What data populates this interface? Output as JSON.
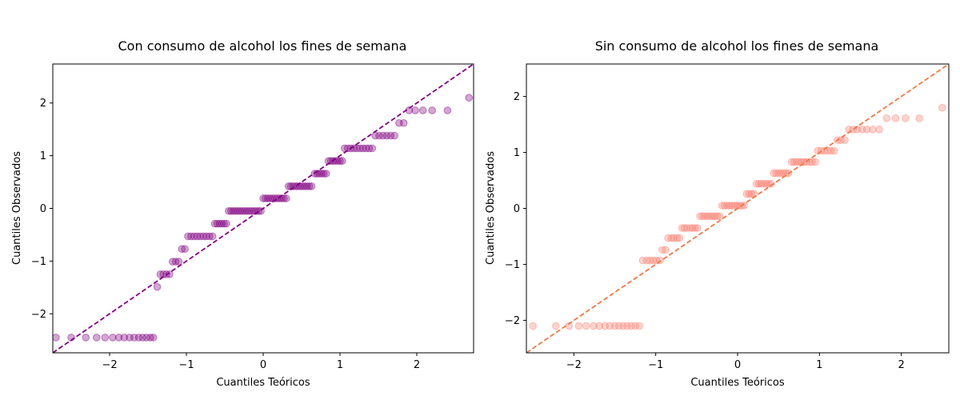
{
  "chart_data": [
    {
      "type": "scatter",
      "title": "Con consumo de alcohol los fines de semana",
      "xlabel": "Cuantiles Teóricos",
      "ylabel": "Cuantiles Observados",
      "xlim": [
        -2.74,
        2.74
      ],
      "ylim": [
        -2.74,
        2.74
      ],
      "xticks": [
        -2,
        -1,
        0,
        1,
        2
      ],
      "yticks": [
        -2,
        -1,
        0,
        1,
        2
      ],
      "grid": false,
      "colors": {
        "points": "#800080",
        "line": "#800080"
      },
      "reference_line": {
        "style": "dashed",
        "slope": 1,
        "intercept": 0
      },
      "series": [
        {
          "values": [
            [
              -2.7,
              -2.45
            ],
            [
              -2.5,
              -2.45
            ],
            [
              -2.31,
              -2.45
            ],
            [
              -2.17,
              -2.45
            ],
            [
              -2.06,
              -2.45
            ],
            [
              -1.96,
              -2.45
            ],
            [
              -1.88,
              -2.45
            ],
            [
              -1.81,
              -2.45
            ],
            [
              -1.74,
              -2.45
            ],
            [
              -1.68,
              -2.45
            ],
            [
              -1.62,
              -2.45
            ],
            [
              -1.57,
              -2.45
            ],
            [
              -1.52,
              -2.45
            ],
            [
              -1.47,
              -2.45
            ],
            [
              -1.43,
              -2.45
            ],
            [
              -1.38,
              -1.49
            ],
            [
              -1.34,
              -1.25
            ],
            [
              -1.3,
              -1.25
            ],
            [
              -1.26,
              -1.25
            ],
            [
              -1.22,
              -1.25
            ],
            [
              -1.18,
              -1.01
            ],
            [
              -1.14,
              -1.01
            ],
            [
              -1.1,
              -1.01
            ],
            [
              -1.06,
              -0.77
            ],
            [
              -1.02,
              -0.77
            ],
            [
              -0.98,
              -0.53
            ],
            [
              -0.94,
              -0.53
            ],
            [
              -0.9,
              -0.53
            ],
            [
              -0.86,
              -0.53
            ],
            [
              -0.82,
              -0.53
            ],
            [
              -0.78,
              -0.53
            ],
            [
              -0.74,
              -0.53
            ],
            [
              -0.7,
              -0.53
            ],
            [
              -0.66,
              -0.53
            ],
            [
              -0.63,
              -0.29
            ],
            [
              -0.6,
              -0.29
            ],
            [
              -0.57,
              -0.29
            ],
            [
              -0.54,
              -0.29
            ],
            [
              -0.51,
              -0.29
            ],
            [
              -0.48,
              -0.29
            ],
            [
              -0.45,
              -0.05
            ],
            [
              -0.42,
              -0.05
            ],
            [
              -0.39,
              -0.05
            ],
            [
              -0.36,
              -0.05
            ],
            [
              -0.33,
              -0.05
            ],
            [
              -0.3,
              -0.05
            ],
            [
              -0.27,
              -0.05
            ],
            [
              -0.24,
              -0.05
            ],
            [
              -0.21,
              -0.05
            ],
            [
              -0.18,
              -0.05
            ],
            [
              -0.15,
              -0.05
            ],
            [
              -0.12,
              -0.05
            ],
            [
              -0.09,
              -0.05
            ],
            [
              -0.06,
              -0.05
            ],
            [
              -0.03,
              -0.05
            ],
            [
              0.0,
              0.19
            ],
            [
              0.03,
              0.19
            ],
            [
              0.06,
              0.19
            ],
            [
              0.09,
              0.19
            ],
            [
              0.12,
              0.19
            ],
            [
              0.15,
              0.19
            ],
            [
              0.18,
              0.19
            ],
            [
              0.21,
              0.19
            ],
            [
              0.24,
              0.19
            ],
            [
              0.27,
              0.19
            ],
            [
              0.3,
              0.19
            ],
            [
              0.33,
              0.42
            ],
            [
              0.36,
              0.42
            ],
            [
              0.39,
              0.42
            ],
            [
              0.42,
              0.42
            ],
            [
              0.45,
              0.42
            ],
            [
              0.48,
              0.42
            ],
            [
              0.51,
              0.42
            ],
            [
              0.54,
              0.42
            ],
            [
              0.57,
              0.42
            ],
            [
              0.6,
              0.42
            ],
            [
              0.63,
              0.42
            ],
            [
              0.67,
              0.66
            ],
            [
              0.7,
              0.66
            ],
            [
              0.73,
              0.66
            ],
            [
              0.76,
              0.66
            ],
            [
              0.79,
              0.66
            ],
            [
              0.82,
              0.66
            ],
            [
              0.85,
              0.9
            ],
            [
              0.88,
              0.9
            ],
            [
              0.91,
              0.9
            ],
            [
              0.94,
              0.9
            ],
            [
              0.97,
              0.9
            ],
            [
              1.0,
              0.9
            ],
            [
              1.03,
              0.9
            ],
            [
              1.06,
              1.14
            ],
            [
              1.1,
              1.14
            ],
            [
              1.14,
              1.14
            ],
            [
              1.18,
              1.14
            ],
            [
              1.22,
              1.14
            ],
            [
              1.26,
              1.14
            ],
            [
              1.3,
              1.14
            ],
            [
              1.34,
              1.14
            ],
            [
              1.38,
              1.14
            ],
            [
              1.42,
              1.14
            ],
            [
              1.46,
              1.38
            ],
            [
              1.51,
              1.38
            ],
            [
              1.56,
              1.38
            ],
            [
              1.61,
              1.38
            ],
            [
              1.66,
              1.38
            ],
            [
              1.71,
              1.38
            ],
            [
              1.77,
              1.62
            ],
            [
              1.83,
              1.62
            ],
            [
              1.9,
              1.86
            ],
            [
              1.98,
              1.86
            ],
            [
              2.08,
              1.86
            ],
            [
              2.2,
              1.86
            ],
            [
              2.4,
              1.86
            ],
            [
              2.68,
              2.1
            ]
          ]
        }
      ]
    },
    {
      "type": "scatter",
      "title": "Sin consumo de alcohol los fines de semana",
      "xlabel": "Cuantiles Teóricos",
      "ylabel": "Cuantiles Observados",
      "xlim": [
        -2.58,
        2.58
      ],
      "ylim": [
        -2.58,
        2.58
      ],
      "xticks": [
        -2,
        -1,
        0,
        1,
        2
      ],
      "yticks": [
        -2,
        -1,
        0,
        1,
        2
      ],
      "grid": false,
      "colors": {
        "points": "#FA8072",
        "line": "#F07844"
      },
      "reference_line": {
        "style": "dashed",
        "slope": 1,
        "intercept": 0
      },
      "series": [
        {
          "values": [
            [
              -2.5,
              -2.1
            ],
            [
              -2.22,
              -2.1
            ],
            [
              -2.06,
              -2.1
            ],
            [
              -1.94,
              -2.1
            ],
            [
              -1.85,
              -2.1
            ],
            [
              -1.76,
              -2.1
            ],
            [
              -1.69,
              -2.1
            ],
            [
              -1.62,
              -2.1
            ],
            [
              -1.56,
              -2.1
            ],
            [
              -1.5,
              -2.1
            ],
            [
              -1.45,
              -2.1
            ],
            [
              -1.4,
              -2.1
            ],
            [
              -1.35,
              -2.1
            ],
            [
              -1.3,
              -2.1
            ],
            [
              -1.25,
              -2.1
            ],
            [
              -1.2,
              -2.1
            ],
            [
              -1.16,
              -0.93
            ],
            [
              -1.11,
              -0.93
            ],
            [
              -1.07,
              -0.93
            ],
            [
              -1.03,
              -0.93
            ],
            [
              -0.99,
              -0.93
            ],
            [
              -0.95,
              -0.93
            ],
            [
              -0.92,
              -0.74
            ],
            [
              -0.88,
              -0.74
            ],
            [
              -0.85,
              -0.53
            ],
            [
              -0.81,
              -0.53
            ],
            [
              -0.78,
              -0.53
            ],
            [
              -0.74,
              -0.53
            ],
            [
              -0.71,
              -0.53
            ],
            [
              -0.68,
              -0.35
            ],
            [
              -0.65,
              -0.35
            ],
            [
              -0.62,
              -0.35
            ],
            [
              -0.58,
              -0.35
            ],
            [
              -0.55,
              -0.35
            ],
            [
              -0.52,
              -0.35
            ],
            [
              -0.49,
              -0.35
            ],
            [
              -0.46,
              -0.14
            ],
            [
              -0.43,
              -0.14
            ],
            [
              -0.4,
              -0.14
            ],
            [
              -0.37,
              -0.14
            ],
            [
              -0.34,
              -0.14
            ],
            [
              -0.31,
              -0.14
            ],
            [
              -0.28,
              -0.14
            ],
            [
              -0.25,
              -0.14
            ],
            [
              -0.22,
              -0.14
            ],
            [
              -0.19,
              0.05
            ],
            [
              -0.16,
              0.05
            ],
            [
              -0.13,
              0.05
            ],
            [
              -0.1,
              0.05
            ],
            [
              -0.07,
              0.05
            ],
            [
              -0.04,
              0.05
            ],
            [
              -0.01,
              0.05
            ],
            [
              0.02,
              0.05
            ],
            [
              0.05,
              0.05
            ],
            [
              0.08,
              0.05
            ],
            [
              0.11,
              0.26
            ],
            [
              0.14,
              0.26
            ],
            [
              0.17,
              0.26
            ],
            [
              0.2,
              0.26
            ],
            [
              0.23,
              0.44
            ],
            [
              0.26,
              0.44
            ],
            [
              0.29,
              0.44
            ],
            [
              0.32,
              0.44
            ],
            [
              0.35,
              0.44
            ],
            [
              0.38,
              0.44
            ],
            [
              0.41,
              0.44
            ],
            [
              0.44,
              0.63
            ],
            [
              0.47,
              0.63
            ],
            [
              0.5,
              0.63
            ],
            [
              0.53,
              0.63
            ],
            [
              0.56,
              0.63
            ],
            [
              0.59,
              0.63
            ],
            [
              0.62,
              0.63
            ],
            [
              0.66,
              0.83
            ],
            [
              0.69,
              0.83
            ],
            [
              0.72,
              0.83
            ],
            [
              0.75,
              0.83
            ],
            [
              0.78,
              0.83
            ],
            [
              0.81,
              0.83
            ],
            [
              0.84,
              0.83
            ],
            [
              0.88,
              0.83
            ],
            [
              0.91,
              0.83
            ],
            [
              0.95,
              0.83
            ],
            [
              0.98,
              1.03
            ],
            [
              1.02,
              1.03
            ],
            [
              1.06,
              1.03
            ],
            [
              1.1,
              1.03
            ],
            [
              1.14,
              1.03
            ],
            [
              1.18,
              1.03
            ],
            [
              1.22,
              1.22
            ],
            [
              1.26,
              1.22
            ],
            [
              1.31,
              1.22
            ],
            [
              1.36,
              1.41
            ],
            [
              1.41,
              1.41
            ],
            [
              1.46,
              1.41
            ],
            [
              1.52,
              1.41
            ],
            [
              1.58,
              1.41
            ],
            [
              1.65,
              1.41
            ],
            [
              1.73,
              1.41
            ],
            [
              1.82,
              1.61
            ],
            [
              1.93,
              1.61
            ],
            [
              2.05,
              1.61
            ],
            [
              2.22,
              1.61
            ],
            [
              2.5,
              1.8
            ]
          ]
        }
      ]
    }
  ]
}
